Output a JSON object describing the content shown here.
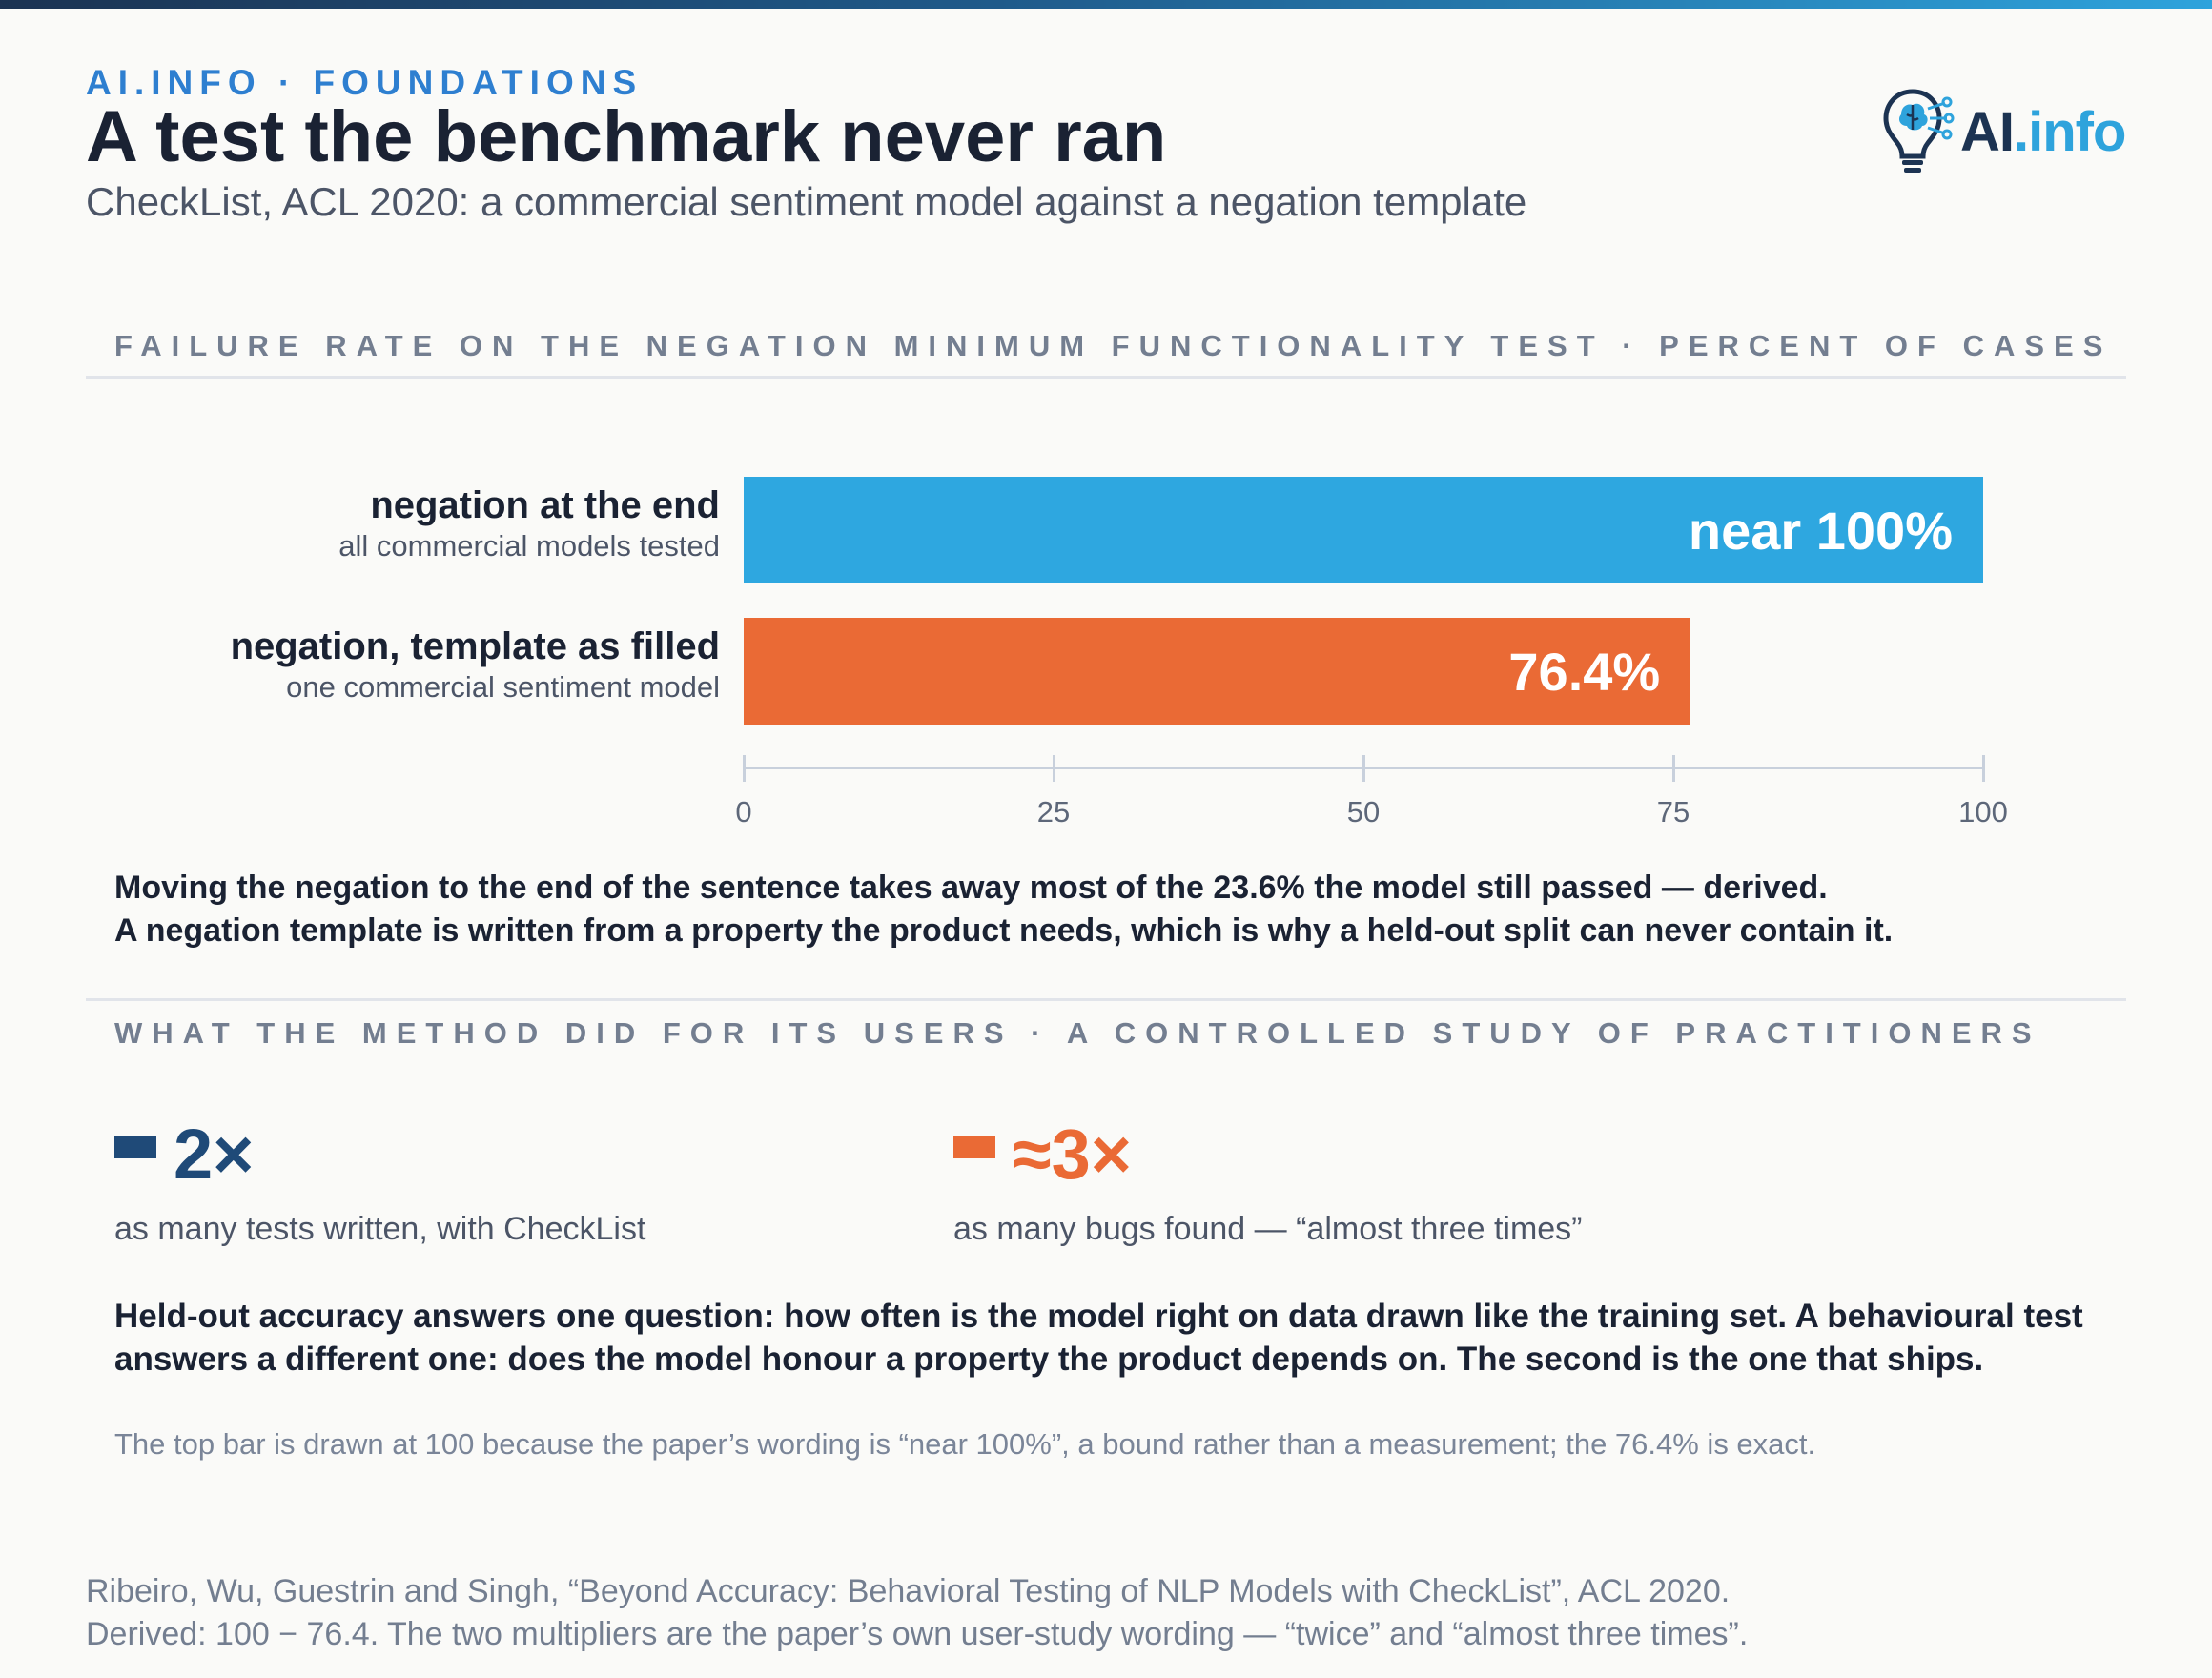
{
  "header": {
    "kicker": "AI.INFO · FOUNDATIONS",
    "title": "A test the benchmark never ran",
    "subtitle": "CheckList, ACL 2020: a commercial sentiment model against a negation template",
    "logo_text_a": "AI",
    "logo_text_b": ".info"
  },
  "section1_heading": "FAILURE RATE ON THE NEGATION MINIMUM FUNCTIONALITY TEST · PERCENT OF CASES",
  "chart_data": {
    "type": "bar",
    "orientation": "horizontal",
    "title": "FAILURE RATE ON THE NEGATION MINIMUM FUNCTIONALITY TEST · PERCENT OF CASES",
    "xlim": [
      0,
      100
    ],
    "ticks": [
      "0",
      "25",
      "50",
      "75",
      "100"
    ],
    "tick_values": [
      0,
      25,
      50,
      75,
      100
    ],
    "bars": [
      {
        "label": "negation at the end",
        "sublabel": "all commercial models tested",
        "value": 100,
        "value_label": "near 100%",
        "color": "#2ea7e0"
      },
      {
        "label": "negation, template as filled",
        "sublabel": "one commercial sentiment model",
        "value": 76.4,
        "value_label": "76.4%",
        "color": "#ea6a35"
      }
    ],
    "grid": false
  },
  "notes": {
    "line1": "Moving the negation to the end of the sentence takes away most of the 23.6% the model still passed — derived.",
    "line2": "A negation template is written from a property the product needs, which is why a held-out split can never contain it."
  },
  "section2_heading": "WHAT THE METHOD DID FOR ITS USERS · A CONTROLLED STUDY OF PRACTITIONERS",
  "stats": [
    {
      "value": "2×",
      "desc": "as many tests written, with CheckList",
      "color": "#1f4a78"
    },
    {
      "value": "≈3×",
      "desc": "as many bugs found — “almost three times”",
      "color": "#ea6a35"
    }
  ],
  "paragraph": "Held-out accuracy answers one question: how often is the model right on data drawn like the training set. A behavioural test answers a different one: does the model honour a property the product depends on. The second is the one that ships.",
  "footnote": "The top bar is drawn at 100 because the paper’s wording is “near 100%”, a bound rather than a measurement; the 76.4% is exact.",
  "source": {
    "line1": "Ribeiro, Wu, Guestrin and Singh, “Beyond Accuracy: Behavioral Testing of NLP Models with CheckList”, ACL 2020.",
    "line2": "Derived: 100 − 76.4. The two multipliers are the paper’s own user-study wording — “twice” and “almost three times”."
  }
}
